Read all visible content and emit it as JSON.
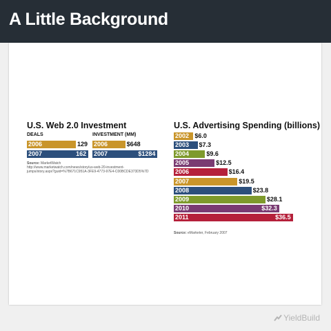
{
  "header": {
    "title": "A Little Background"
  },
  "web20": {
    "title": "U.S. Web 2.0 Investment",
    "deals_label": "DEALS",
    "investment_label": "INVESTMENT (MM)",
    "source_label": "Source:",
    "source_name": "MarketWatch",
    "source_url_line1": "http://www.marketwatch.com/news/story/us-web-20-investment-",
    "source_url_line2": "jumps/story.aspx?guid=%7B671C951A-3FE9-4773-97E4-C00BCDE373D5%7D"
  },
  "adspend": {
    "title": "U.S. Advertising Spending (billions)",
    "source_label": "Source:",
    "source_name": "eMarketer, February 2007"
  },
  "footer": {
    "logo_text": "YieldBuild"
  },
  "colors": {
    "gold": "#c9952a",
    "navy": "#2c4f7c",
    "olive": "#7e9a2c",
    "purple": "#7a3b72",
    "red": "#b5203a"
  },
  "chart_data": [
    {
      "type": "bar",
      "title": "DEALS",
      "categories": [
        "2006",
        "2007"
      ],
      "values": [
        129,
        162
      ],
      "value_labels": [
        "129",
        "162"
      ],
      "colors": [
        "#c9952a",
        "#2c4f7c"
      ]
    },
    {
      "type": "bar",
      "title": "INVESTMENT (MM)",
      "categories": [
        "2006",
        "2007"
      ],
      "values": [
        648,
        1284
      ],
      "value_labels": [
        "$648",
        "$1284"
      ],
      "colors": [
        "#c9952a",
        "#2c4f7c"
      ]
    },
    {
      "type": "bar",
      "title": "U.S. Advertising Spending (billions)",
      "categories": [
        "2002",
        "2003",
        "2004",
        "2005",
        "2006",
        "2007",
        "2008",
        "2009",
        "2010",
        "2011"
      ],
      "values": [
        6.0,
        7.3,
        9.6,
        12.5,
        16.4,
        19.5,
        23.8,
        28.1,
        32.3,
        36.5
      ],
      "value_labels": [
        "$6.0",
        "$7.3",
        "$9.6",
        "$12.5",
        "$16.4",
        "$19.5",
        "$23.8",
        "$28.1",
        "$32.3",
        "$36.5"
      ],
      "colors": [
        "#c9952a",
        "#2c4f7c",
        "#7e9a2c",
        "#7a3b72",
        "#b5203a",
        "#c9952a",
        "#2c4f7c",
        "#7e9a2c",
        "#7a3b72",
        "#b5203a"
      ]
    }
  ]
}
